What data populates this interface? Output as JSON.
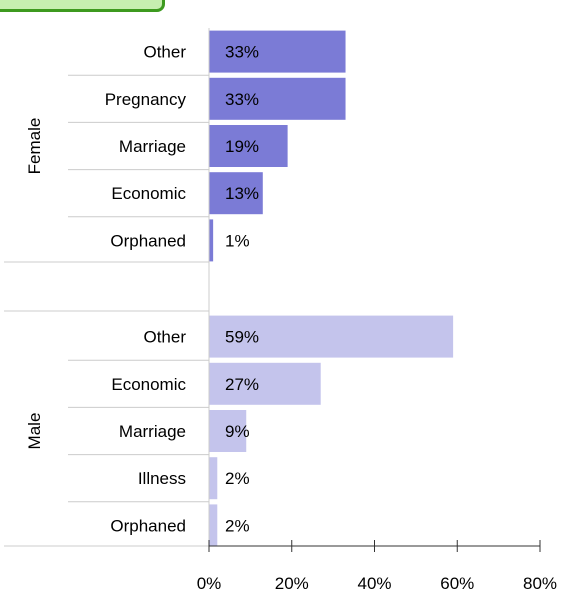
{
  "chart_data": {
    "type": "bar",
    "orientation": "horizontal",
    "title": "",
    "xlabel": "",
    "ylabel": "",
    "xlim": [
      0,
      80
    ],
    "x_ticks": [
      "0%",
      "20%",
      "40%",
      "60%",
      "80%"
    ],
    "x_tick_values": [
      0,
      20,
      40,
      60,
      80
    ],
    "grid": false,
    "legend": "none",
    "groups": [
      {
        "name": "Female",
        "color": "#7b7bd6",
        "categories": [
          "Other",
          "Pregnancy",
          "Marriage",
          "Economic",
          "Orphaned"
        ],
        "values": [
          33,
          33,
          19,
          13,
          1
        ],
        "labels": [
          "33%",
          "33%",
          "19%",
          "13%",
          "1%"
        ]
      },
      {
        "name": "Male",
        "color": "#c4c4ec",
        "categories": [
          "Other",
          "Economic",
          "Marriage",
          "Illness",
          "Orphaned"
        ],
        "values": [
          59,
          27,
          9,
          2,
          2
        ],
        "labels": [
          "59%",
          "27%",
          "9%",
          "2%",
          "2%"
        ]
      }
    ]
  }
}
